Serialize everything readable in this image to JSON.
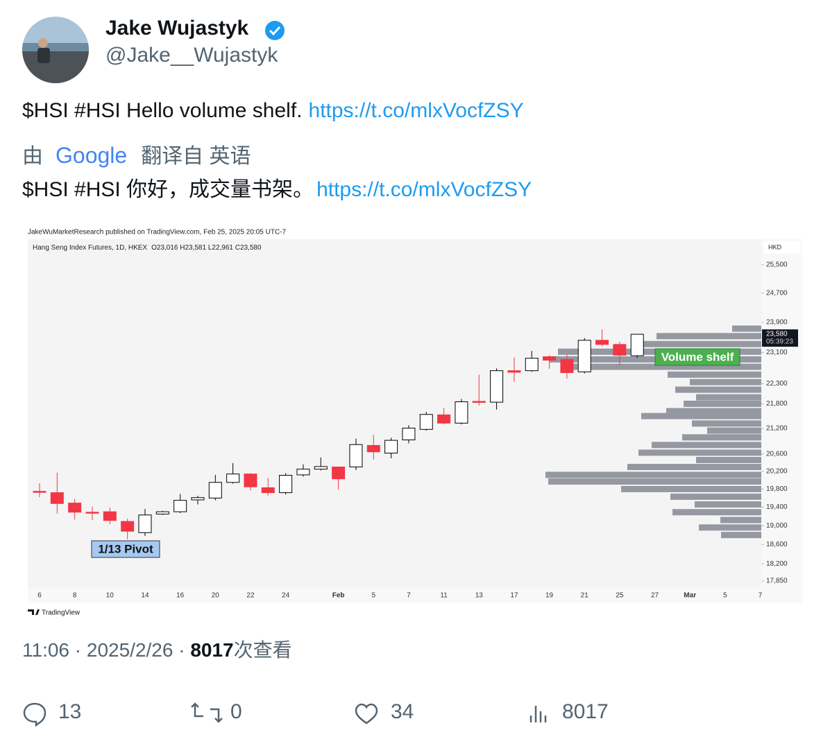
{
  "author": {
    "name": "Jake Wujastyk",
    "handle": "@Jake__Wujastyk"
  },
  "tweet": {
    "text": "$HSI #HSI Hello volume shelf.",
    "link": "https://t.co/mlxVocfZSY"
  },
  "translation": {
    "by": "由",
    "brand": "Google",
    "from": "翻译自 英语",
    "text": "$HSI #HSI 你好，成交量书架。",
    "link": "https://t.co/mlxVocfZSY"
  },
  "media": {
    "chart_data": {
      "type": "candlestick",
      "source": "JakeWuMarketResearch published on TradingView.com, Feb 25, 2025 20:05 UTC-7",
      "title": "Hang Seng Index Futures, 1D, HKEX",
      "ohlc_header": "O23,016  H23,581  L22,961  C23,580",
      "currency": "HKD",
      "brand": "TradingView",
      "yscale": "log",
      "ylim": [
        17710,
        26250
      ],
      "yticks": [
        {
          "value": 25500,
          "label": "25,500"
        },
        {
          "value": 24700,
          "label": "24,700"
        },
        {
          "value": 23900,
          "label": "23,900"
        },
        {
          "value": 23100,
          "label": "23,100"
        },
        {
          "value": 22300,
          "label": "22,300"
        },
        {
          "value": 21800,
          "label": "21,800"
        },
        {
          "value": 21200,
          "label": "21,200"
        },
        {
          "value": 20600,
          "label": "20,600"
        },
        {
          "value": 20200,
          "label": "20,200"
        },
        {
          "value": 19800,
          "label": "19,800"
        },
        {
          "value": 19400,
          "label": "19,400"
        },
        {
          "value": 19000,
          "label": "19,000"
        },
        {
          "value": 18600,
          "label": "18,600"
        },
        {
          "value": 18200,
          "label": "18,200"
        },
        {
          "value": 17850,
          "label": "17,850"
        }
      ],
      "categories": [
        "6",
        null,
        "8",
        null,
        "10",
        null,
        "14",
        null,
        "16",
        null,
        "20",
        null,
        "22",
        null,
        "24",
        null,
        null,
        "Feb",
        null,
        "5",
        null,
        "7",
        null,
        "11",
        null,
        "13",
        null,
        "17",
        null,
        "19",
        null,
        "21",
        null,
        "25",
        null,
        "27",
        null,
        "Mar",
        null,
        "5",
        null,
        "7"
      ],
      "open": [
        19750,
        19720,
        19490,
        19290,
        19300,
        19090,
        18850,
        19250,
        19300,
        19560,
        19600,
        19950,
        20140,
        19830,
        19720,
        20120,
        20250,
        20300,
        20300,
        20800,
        20620,
        20930,
        21180,
        21530,
        21330,
        21860,
        21840,
        22630,
        22630,
        22990,
        22920,
        22600,
        23420,
        23310,
        23016,
        null,
        null,
        null,
        null,
        null,
        null,
        null
      ],
      "high": [
        19930,
        20170,
        19580,
        19415,
        19390,
        19150,
        19360,
        19320,
        19690,
        19650,
        20120,
        20390,
        20160,
        20050,
        20160,
        20360,
        20520,
        20300,
        20960,
        21050,
        20980,
        21280,
        21600,
        21700,
        21920,
        22530,
        22690,
        22970,
        23140,
        23030,
        23060,
        23480,
        23710,
        23380,
        23581,
        null,
        null,
        null,
        null,
        null,
        null,
        null
      ],
      "low": [
        19620,
        19260,
        19130,
        19120,
        19030,
        18710,
        18780,
        19230,
        19270,
        19460,
        19550,
        19920,
        19770,
        19650,
        19680,
        20080,
        20220,
        19790,
        20230,
        20470,
        20500,
        20850,
        21150,
        21300,
        21300,
        21760,
        21660,
        22350,
        22600,
        22680,
        22430,
        22560,
        23260,
        22770,
        22961,
        null,
        null,
        null,
        null,
        null,
        null,
        null
      ],
      "close": [
        19740,
        19480,
        19290,
        19280,
        19110,
        18880,
        19230,
        19300,
        19550,
        19610,
        19950,
        20140,
        19850,
        19720,
        20110,
        20250,
        20310,
        20030,
        20820,
        20650,
        20920,
        21210,
        21540,
        21330,
        21850,
        21840,
        22630,
        22590,
        22950,
        22900,
        22580,
        23420,
        23310,
        23030,
        23580,
        null,
        null,
        null,
        null,
        null,
        null,
        null
      ],
      "up_color": "#ffffff",
      "down_color": "#f23645",
      "last_price": {
        "value": 23580,
        "label": "23,580"
      },
      "countdown": "05:39:23",
      "volume_profile": {
        "color": "#9598a1",
        "prices": [
          23730,
          23530,
          23320,
          23120,
          22920,
          22730,
          22530,
          22340,
          22150,
          21960,
          21800,
          21620,
          21500,
          21320,
          21150,
          20990,
          20810,
          20630,
          20460,
          20300,
          20120,
          19970,
          19800,
          19630,
          19460,
          19290,
          19120,
          18960,
          18800
        ],
        "volumes": [
          42,
          151,
          184,
          293,
          305,
          289,
          135,
          103,
          124,
          94,
          112,
          137,
          173,
          100,
          78,
          114,
          158,
          177,
          94,
          193,
          311,
          307,
          202,
          131,
          96,
          128,
          59,
          90,
          58
        ]
      },
      "annotations": {
        "pivot": "1/13 Pivot",
        "shelf": "Volume shelf"
      }
    }
  },
  "meta": {
    "timestamp": "11:06 · 2025/2/26 · ",
    "views": 8017,
    "views_label": "次查看"
  },
  "actions": {
    "replies": 13,
    "retweets": 0,
    "likes": 34,
    "views": 8017
  }
}
